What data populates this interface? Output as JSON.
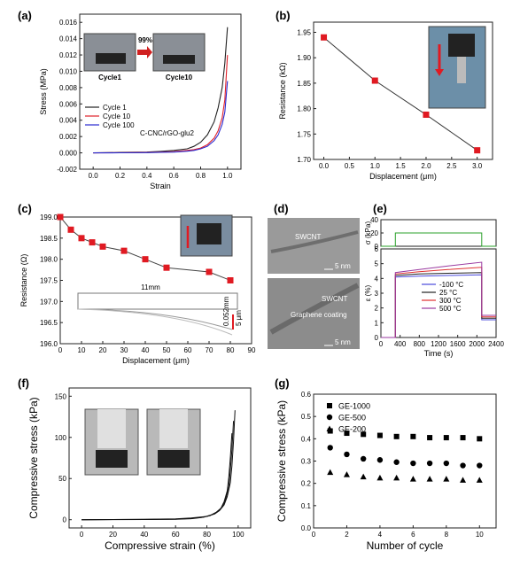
{
  "chart_data": [
    {
      "panel": "(a)",
      "type": "line",
      "xlabel": "Strain",
      "ylabel": "Stress (MPa)",
      "xlim": [
        -0.1,
        1.1
      ],
      "ylim": [
        -0.002,
        0.017
      ],
      "xticks": [
        "0.0",
        "0.2",
        "0.4",
        "0.6",
        "0.8",
        "1.0"
      ],
      "yticks": [
        "-0.002",
        "0.000",
        "0.002",
        "0.004",
        "0.006",
        "0.008",
        "0.010",
        "0.012",
        "0.014",
        "0.016"
      ],
      "legend_position": "lower-left",
      "annotation": "C-CNC/rGO-glu2",
      "inset": {
        "left_label": "Cycle1",
        "right_label": "Cycle10",
        "arrow_text": "99%"
      },
      "series": [
        {
          "name": "Cycle 1",
          "color": "#222222",
          "x": [
            0,
            0.2,
            0.4,
            0.5,
            0.6,
            0.7,
            0.75,
            0.8,
            0.85,
            0.9,
            0.93,
            0.96,
            0.98,
            1.0
          ],
          "y": [
            0,
            5e-05,
            0.0001,
            0.00018,
            0.0003,
            0.0005,
            0.0008,
            0.0013,
            0.0022,
            0.0038,
            0.0055,
            0.008,
            0.011,
            0.0154
          ]
        },
        {
          "name": "Cycle 10",
          "color": "#e0202a",
          "x": [
            0,
            0.2,
            0.4,
            0.5,
            0.6,
            0.7,
            0.75,
            0.8,
            0.85,
            0.9,
            0.93,
            0.96,
            0.98,
            1.0
          ],
          "y": [
            0,
            2e-05,
            5e-05,
            0.0001,
            0.00015,
            0.0003,
            0.0004,
            0.0006,
            0.001,
            0.0018,
            0.0027,
            0.0043,
            0.0065,
            0.012
          ]
        },
        {
          "name": "Cycle 100",
          "color": "#2a2ad0",
          "x": [
            0,
            0.2,
            0.4,
            0.5,
            0.6,
            0.7,
            0.75,
            0.8,
            0.85,
            0.9,
            0.93,
            0.96,
            0.98,
            1.0
          ],
          "y": [
            0,
            1e-05,
            3e-05,
            7e-05,
            0.0001,
            0.0002,
            0.0003,
            0.0005,
            0.0008,
            0.0015,
            0.0022,
            0.0035,
            0.005,
            0.0088
          ]
        }
      ]
    },
    {
      "panel": "(b)",
      "type": "line",
      "xlabel": "Displacement (μm)",
      "ylabel": "Resistance (kΩ)",
      "xlim": [
        -0.2,
        3.3
      ],
      "ylim": [
        1.7,
        1.97
      ],
      "xticks": [
        "0.0",
        "0.5",
        "1.0",
        "1.5",
        "2.0",
        "2.5",
        "3.0"
      ],
      "yticks": [
        "1.70",
        "1.75",
        "1.80",
        "1.85",
        "1.90",
        "1.95"
      ],
      "marker_color": "#e01a22",
      "x": [
        0,
        1,
        2,
        3
      ],
      "y": [
        1.94,
        1.855,
        1.788,
        1.718
      ]
    },
    {
      "panel": "(c)",
      "type": "line",
      "xlabel": "Displacement (μm)",
      "ylabel": "Resistance (Ω)",
      "xlim": [
        0,
        90
      ],
      "ylim": [
        196.0,
        199.0
      ],
      "xticks": [
        "0",
        "10",
        "20",
        "30",
        "40",
        "50",
        "60",
        "70",
        "80",
        "90"
      ],
      "yticks": [
        "196.0",
        "196.5",
        "197.0",
        "197.5",
        "198.0",
        "198.5",
        "199.0"
      ],
      "marker_color": "#e01a22",
      "x": [
        0,
        5,
        10,
        15,
        20,
        30,
        40,
        50,
        70,
        80
      ],
      "y": [
        199.0,
        198.7,
        198.5,
        198.4,
        198.3,
        198.2,
        198.0,
        197.8,
        197.7,
        197.5
      ],
      "inset_text": "11mm",
      "inset_small": "0.052mm",
      "inset_small2": "5 μm"
    },
    {
      "panel": "(d)",
      "type": "image",
      "labels_top": [
        "SWCNT",
        "5 nm"
      ],
      "labels_bottom": [
        "SWCNT",
        "Graphene coating",
        "5 nm"
      ]
    },
    {
      "panel": "(e)",
      "type": "line",
      "xlabel": "Time (s)",
      "ylabel_top": "σ (kPa)",
      "ylabel_bottom": "ε (%)",
      "xlim": [
        0,
        2400
      ],
      "xticks": [
        "0",
        "400",
        "800",
        "1200",
        "1600",
        "2000",
        "2400"
      ],
      "top_ylim": [
        0,
        40
      ],
      "top_yticks": [
        "0",
        "20",
        "40"
      ],
      "bottom_ylim": [
        0,
        6
      ],
      "bottom_yticks": [
        "0",
        "1",
        "2",
        "3",
        "4",
        "5",
        "6"
      ],
      "stress": {
        "color": "#2aa02a",
        "x": [
          0,
          300,
          300,
          2100,
          2100,
          2400
        ],
        "y": [
          0,
          0,
          20,
          20,
          0,
          0
        ]
      },
      "series": [
        {
          "name": "-100 °C",
          "color": "#4a4adc",
          "x": [
            0,
            300,
            300,
            800,
            1400,
            2100,
            2100,
            2400
          ],
          "y": [
            0,
            0,
            4.1,
            4.15,
            4.2,
            4.25,
            1.2,
            1.2
          ]
        },
        {
          "name": "25 °C",
          "color": "#222222",
          "x": [
            0,
            300,
            300,
            800,
            1400,
            2100,
            2100,
            2400
          ],
          "y": [
            0,
            0,
            4.2,
            4.3,
            4.35,
            4.4,
            1.3,
            1.3
          ]
        },
        {
          "name": "300 °C",
          "color": "#e03030",
          "x": [
            0,
            300,
            300,
            800,
            1400,
            2100,
            2100,
            2400
          ],
          "y": [
            0,
            0,
            4.3,
            4.45,
            4.6,
            4.75,
            1.4,
            1.4
          ]
        },
        {
          "name": "500 °C",
          "color": "#9a3aa0",
          "x": [
            0,
            300,
            300,
            800,
            1400,
            2100,
            2100,
            2400
          ],
          "y": [
            0,
            0,
            4.4,
            4.6,
            4.85,
            5.1,
            1.5,
            1.5
          ]
        }
      ]
    },
    {
      "panel": "(f)",
      "type": "line",
      "xlabel": "Compressive strain (%)",
      "ylabel": "Compressive stress (kPa)",
      "xlim": [
        -8,
        108
      ],
      "ylim": [
        -10,
        160
      ],
      "xticks": [
        "0",
        "20",
        "40",
        "60",
        "80",
        "100"
      ],
      "yticks": [
        "0",
        "50",
        "100",
        "150"
      ],
      "series": [
        {
          "color": "#111111",
          "x": [
            0,
            40,
            60,
            70,
            80,
            85,
            88,
            91,
            93,
            95,
            96,
            97,
            98
          ],
          "y": [
            0,
            0.5,
            1,
            2,
            4,
            7,
            11,
            18,
            28,
            45,
            65,
            95,
            133
          ]
        },
        {
          "color": "#111111",
          "x": [
            0,
            40,
            60,
            70,
            78,
            83,
            87,
            90,
            92,
            94,
            95,
            96,
            97
          ],
          "y": [
            0,
            0.3,
            0.7,
            1.5,
            3,
            6,
            10,
            16,
            25,
            40,
            60,
            85,
            120
          ]
        },
        {
          "color": "#111111",
          "x": [
            0,
            40,
            60,
            70,
            76,
            82,
            86,
            89,
            91,
            93,
            94,
            95,
            96
          ],
          "y": [
            0,
            0.2,
            0.5,
            1.2,
            2.5,
            5,
            9,
            14,
            22,
            35,
            52,
            75,
            105
          ]
        }
      ]
    },
    {
      "panel": "(g)",
      "type": "scatter",
      "xlabel": "Number of cycle",
      "ylabel": "Compressive stress (kPa)",
      "xlim": [
        0,
        11
      ],
      "ylim": [
        0.0,
        0.6
      ],
      "xticks": [
        "0",
        "2",
        "4",
        "6",
        "8",
        "10"
      ],
      "yticks": [
        "0.0",
        "0.1",
        "0.2",
        "0.3",
        "0.4",
        "0.5",
        "0.6"
      ],
      "legend_position": "top-left",
      "x": [
        1,
        2,
        3,
        4,
        5,
        6,
        7,
        8,
        9,
        10
      ],
      "series": [
        {
          "name": "GE-1000",
          "marker": "square",
          "values": [
            0.435,
            0.425,
            0.42,
            0.415,
            0.41,
            0.41,
            0.405,
            0.405,
            0.405,
            0.4
          ]
        },
        {
          "name": "GE-500",
          "marker": "circle",
          "values": [
            0.36,
            0.33,
            0.31,
            0.305,
            0.295,
            0.29,
            0.29,
            0.29,
            0.28,
            0.28
          ]
        },
        {
          "name": "GE-200",
          "marker": "triangle",
          "values": [
            0.25,
            0.24,
            0.23,
            0.225,
            0.225,
            0.22,
            0.22,
            0.22,
            0.215,
            0.215
          ]
        }
      ]
    }
  ]
}
